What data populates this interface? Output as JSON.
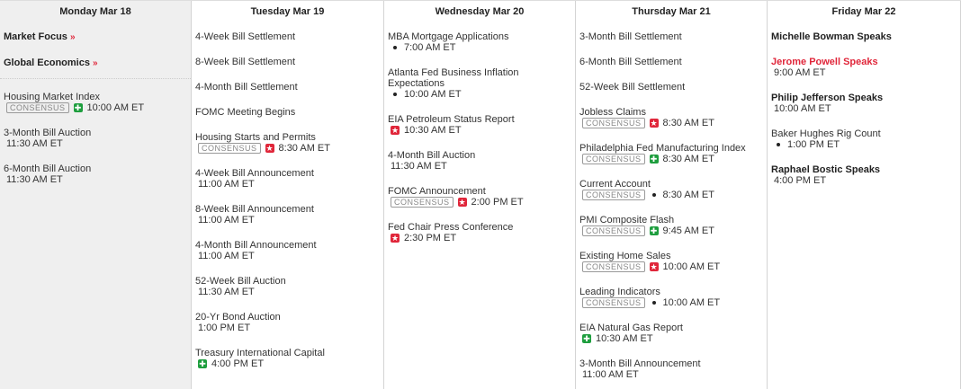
{
  "colors": {
    "accent_red": "#e0263a",
    "positive_green": "#1e9e3e",
    "today_bg": "#efefef"
  },
  "days": [
    {
      "label": "Monday Mar 18",
      "today": true,
      "items": [
        {
          "title": "Market Focus",
          "bold": true,
          "link": "»"
        },
        {
          "title": "Global Economics",
          "bold": true,
          "link": "»",
          "divider_after": true
        },
        {
          "title": "Housing Market Index",
          "consensus": "CONSENSUS",
          "icon": "green-plus-icon",
          "time": "10:00 AM ET"
        },
        {
          "title": "3-Month Bill Auction",
          "time": "11:30 AM ET"
        },
        {
          "title": "6-Month Bill Auction",
          "time": "11:30 AM ET"
        }
      ]
    },
    {
      "label": "Tuesday Mar 19",
      "items": [
        {
          "title": "4-Week Bill Settlement"
        },
        {
          "title": "8-Week Bill Settlement"
        },
        {
          "title": "4-Month Bill Settlement"
        },
        {
          "title": "FOMC Meeting Begins"
        },
        {
          "title": "Housing Starts and Permits",
          "consensus": "CONSENSUS",
          "icon": "red-star-icon",
          "time": "8:30 AM ET"
        },
        {
          "title": "4-Week Bill Announcement",
          "time": "11:00 AM ET"
        },
        {
          "title": "8-Week Bill Announcement",
          "time": "11:00 AM ET"
        },
        {
          "title": "4-Month Bill Announcement",
          "time": "11:00 AM ET"
        },
        {
          "title": "52-Week Bill Auction",
          "time": "11:30 AM ET"
        },
        {
          "title": "20-Yr Bond Auction",
          "time": "1:00 PM ET"
        },
        {
          "title": "Treasury International Capital",
          "icon": "green-plus-icon",
          "time": "4:00 PM ET"
        }
      ]
    },
    {
      "label": "Wednesday Mar 20",
      "items": [
        {
          "title": "MBA Mortgage Applications",
          "icon": "bullet-icon",
          "time": "7:00 AM ET"
        },
        {
          "title": "Atlanta Fed Business Inflation Expectations",
          "icon": "bullet-icon",
          "time": "10:00 AM ET"
        },
        {
          "title": "EIA Petroleum Status Report",
          "icon": "red-star-icon",
          "time": "10:30 AM ET"
        },
        {
          "title": "4-Month Bill Auction",
          "time": "11:30 AM ET"
        },
        {
          "title": "FOMC Announcement",
          "consensus": "CONSENSUS",
          "icon": "red-star-icon",
          "time": "2:00 PM ET"
        },
        {
          "title": "Fed Chair Press Conference",
          "icon": "red-star-icon",
          "time": "2:30 PM ET"
        }
      ]
    },
    {
      "label": "Thursday Mar 21",
      "items": [
        {
          "title": "3-Month Bill Settlement"
        },
        {
          "title": "6-Month Bill Settlement"
        },
        {
          "title": "52-Week Bill Settlement"
        },
        {
          "title": "Jobless Claims",
          "consensus": "CONSENSUS",
          "icon": "red-star-icon",
          "time": "8:30 AM ET"
        },
        {
          "title": "Philadelphia Fed Manufacturing Index",
          "consensus": "CONSENSUS",
          "icon": "green-plus-icon",
          "time": "8:30 AM ET"
        },
        {
          "title": "Current Account",
          "consensus": "CONSENSUS",
          "icon": "bullet-icon",
          "time": "8:30 AM ET"
        },
        {
          "title": "PMI Composite Flash",
          "consensus": "CONSENSUS",
          "icon": "green-plus-icon",
          "time": "9:45 AM ET"
        },
        {
          "title": "Existing Home Sales",
          "consensus": "CONSENSUS",
          "icon": "red-star-icon",
          "time": "10:00 AM ET"
        },
        {
          "title": "Leading Indicators",
          "consensus": "CONSENSUS",
          "icon": "bullet-icon",
          "time": "10:00 AM ET"
        },
        {
          "title": "EIA Natural Gas Report",
          "icon": "green-plus-icon",
          "time": "10:30 AM ET"
        },
        {
          "title": "3-Month Bill Announcement",
          "time": "11:00 AM ET"
        }
      ]
    },
    {
      "label": "Friday Mar 22",
      "items": [
        {
          "title": "Michelle Bowman Speaks",
          "bold": true
        },
        {
          "title": "Jerome Powell Speaks",
          "bold": true,
          "red": true,
          "time": "9:00 AM ET"
        },
        {
          "title": "Philip Jefferson Speaks",
          "bold": true,
          "time": "10:00 AM ET"
        },
        {
          "title": "Baker Hughes Rig Count",
          "icon": "bullet-icon",
          "time": "1:00 PM ET"
        },
        {
          "title": "Raphael Bostic Speaks",
          "bold": true,
          "time": "4:00 PM ET"
        }
      ]
    }
  ]
}
